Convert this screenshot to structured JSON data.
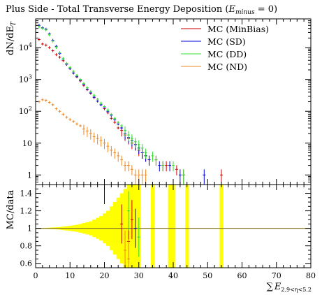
{
  "chart_data": [
    {
      "type": "scatter",
      "panel": "main",
      "title": "Plus Side - Total Transverse Energy Deposition (E_minus = 0)",
      "title_text": "Plus Side - Total Transverse Energy Deposition (",
      "title_math_base": "E",
      "title_math_sub": "minus",
      "title_tail": " = 0)",
      "ylabel": "dN/dE_T",
      "ylabel_base": "dN/dE",
      "ylabel_sub": "T",
      "xlim": [
        0,
        80
      ],
      "ylim": [
        0.5,
        80000
      ],
      "yscale": "log",
      "ytick_values": [
        1,
        10,
        100,
        1000,
        10000
      ],
      "ytick_labels": [
        "1",
        "10",
        "10^2",
        "10^3",
        "10^4"
      ],
      "legend_placement": "top-right",
      "series": [
        {
          "name": "MC (MinBias)",
          "color": "#cc0000",
          "x": [
            1,
            2,
            3,
            4,
            5,
            6,
            7,
            8,
            9,
            10,
            11,
            12,
            13,
            14,
            15,
            16,
            17,
            18,
            19,
            20,
            21,
            22,
            23,
            24,
            25,
            26,
            27,
            28,
            29,
            30,
            31,
            32,
            33,
            35,
            37,
            38,
            41,
            43,
            54
          ],
          "y": [
            18000,
            13000,
            12000,
            10000,
            8000,
            6000,
            5000,
            3900,
            3000,
            2200,
            1600,
            1200,
            900,
            650,
            480,
            370,
            270,
            210,
            160,
            120,
            90,
            60,
            45,
            30,
            25,
            18,
            14,
            10,
            9,
            6,
            5,
            4,
            3,
            3,
            2,
            2,
            1.5,
            1,
            1
          ]
        },
        {
          "name": "MC (SD)",
          "color": "#0000dd",
          "x": [
            1,
            2,
            3,
            4,
            5,
            6,
            7,
            8,
            9,
            10,
            11,
            12,
            13,
            14,
            15,
            16,
            17,
            18,
            19,
            20,
            21,
            22,
            23,
            24,
            25,
            26,
            27,
            28,
            29,
            30,
            31,
            32,
            33,
            36,
            39,
            42,
            49
          ],
          "y": [
            50000,
            42000,
            38000,
            27000,
            17000,
            11000,
            6500,
            4400,
            3000,
            2200,
            1600,
            1250,
            950,
            700,
            500,
            380,
            280,
            210,
            160,
            130,
            100,
            75,
            55,
            40,
            30,
            20,
            15,
            12,
            9,
            7,
            5,
            4,
            3,
            2,
            2,
            1,
            1
          ]
        },
        {
          "name": "MC (DD)",
          "color": "#33dd33",
          "x": [
            1,
            2,
            3,
            4,
            5,
            6,
            7,
            8,
            9,
            10,
            11,
            12,
            13,
            14,
            15,
            16,
            17,
            18,
            19,
            20,
            21,
            22,
            23,
            24,
            25,
            26,
            27,
            28,
            29,
            30,
            31,
            32,
            34,
            35,
            37,
            40,
            43
          ],
          "y": [
            45000,
            40000,
            36000,
            25000,
            16000,
            10000,
            7000,
            4500,
            3200,
            2400,
            1800,
            1350,
            1000,
            750,
            550,
            420,
            320,
            240,
            180,
            140,
            110,
            80,
            60,
            45,
            35,
            25,
            18,
            14,
            11,
            9,
            7,
            5,
            4,
            3,
            2,
            2,
            1
          ]
        },
        {
          "name": "MC (ND)",
          "color": "#ee8822",
          "x": [
            1,
            2,
            3,
            4,
            5,
            6,
            7,
            8,
            9,
            10,
            11,
            12,
            13,
            14,
            15,
            16,
            17,
            18,
            19,
            20,
            21,
            22,
            23,
            24,
            25,
            26,
            27,
            28,
            29,
            30,
            31,
            32
          ],
          "y": [
            200,
            230,
            220,
            190,
            160,
            120,
            100,
            80,
            65,
            55,
            48,
            40,
            35,
            28,
            24,
            20,
            16,
            14,
            12,
            10,
            8,
            6,
            5,
            4,
            3,
            2,
            2,
            1.5,
            1,
            1,
            1,
            1
          ]
        }
      ]
    },
    {
      "type": "scatter",
      "panel": "ratio",
      "ylabel": "MC/data",
      "xlabel": "sum E_T 2.9<eta<5.2",
      "xlabel_prefix": "∑",
      "xlabel_base": "E",
      "xlabel_sub": "2.9<η<5.2",
      "xlim": [
        0,
        80
      ],
      "ylim": [
        0.55,
        1.5
      ],
      "ytick_values": [
        0.6,
        0.8,
        1,
        1.2,
        1.4
      ],
      "ytick_labels": [
        "0.6",
        "0.8",
        "1",
        "1.2",
        "1.4"
      ],
      "xtick_values": [
        0,
        10,
        20,
        30,
        40,
        50,
        60,
        70,
        80
      ],
      "xtick_labels": [
        "0",
        "10",
        "20",
        "30",
        "40",
        "50",
        "60",
        "70",
        "80"
      ],
      "reference_line": 1,
      "data_uncertainty_band": {
        "color": "#ffff00",
        "x": [
          1,
          2,
          3,
          4,
          5,
          6,
          7,
          8,
          9,
          10,
          11,
          12,
          13,
          14,
          15,
          16,
          17,
          18,
          19,
          20,
          21,
          22,
          23,
          24,
          25,
          26,
          27,
          28,
          29,
          30,
          34,
          39,
          40,
          44,
          54
        ],
        "half_width": [
          0.005,
          0.005,
          0.006,
          0.008,
          0.01,
          0.012,
          0.015,
          0.02,
          0.025,
          0.03,
          0.035,
          0.04,
          0.05,
          0.06,
          0.07,
          0.08,
          0.1,
          0.12,
          0.14,
          0.17,
          0.2,
          0.25,
          0.3,
          0.35,
          0.4,
          0.45,
          0.5,
          0.5,
          0.5,
          0.5,
          0.5,
          0.5,
          0.5,
          0.5,
          0.5
        ]
      },
      "series": [
        {
          "name": "MC (MinBias)",
          "color": "#cc0000",
          "x": [
            25,
            27,
            28
          ],
          "y": [
            1.05,
            0.85,
            1.1
          ]
        },
        {
          "name": "MC (SD)",
          "color": "#0000dd",
          "x": [
            20,
            29
          ],
          "y": [
            1.55,
            1.0
          ]
        },
        {
          "name": "MC (DD)",
          "color": "#33dd33",
          "x": [
            27,
            30
          ],
          "y": [
            1.2,
            0.9
          ]
        },
        {
          "name": "MC (ND)",
          "color": "#ee8822",
          "x": [
            26,
            27
          ],
          "y": [
            0.75,
            0.65
          ]
        }
      ]
    }
  ]
}
